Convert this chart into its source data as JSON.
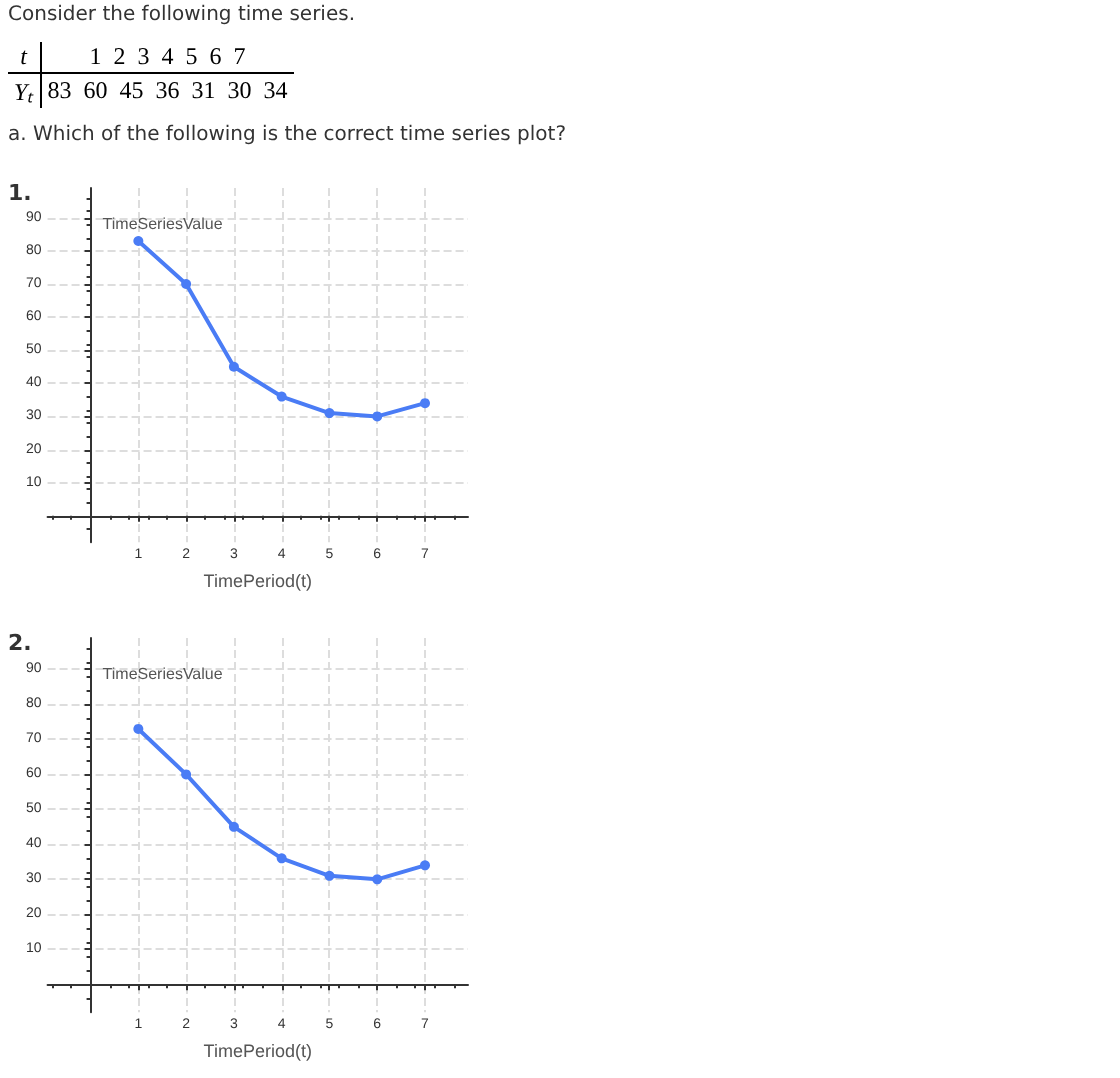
{
  "chart_data": [
    {
      "type": "other",
      "title": "Consider the following time series.",
      "annotations": [
        "t 1 2 3 4 5 6 7",
        "Yₜ 83 60 45 36 31 30 34",
        "a. Which of the following is the correct time series plot?"
      ]
    },
    {
      "type": "line",
      "title": "1.",
      "xlabel": "TimePeriod(t)",
      "ylabel": "TimeSeriesValue",
      "x": [
        1,
        2,
        3,
        4,
        5,
        6,
        7
      ],
      "series": [
        {
          "color": "#4a7cf5",
          "values": [
            83,
            70,
            45,
            36,
            31,
            30,
            34
          ]
        }
      ],
      "xlim": [
        -0.9,
        7.9
      ],
      "ylim": [
        -8,
        99
      ],
      "xticks": [
        1,
        2,
        3,
        4,
        5,
        6,
        7
      ],
      "yticks": [
        10,
        20,
        30,
        40,
        50,
        60,
        70,
        80,
        90
      ],
      "grid": true,
      "marker": "circle",
      "line_style": "solid"
    },
    {
      "type": "line",
      "title": "2.",
      "xlabel": "TimePeriod(t)",
      "ylabel": "TimeSeriesValue",
      "x": [
        1,
        2,
        3,
        4,
        5,
        6,
        7
      ],
      "series": [
        {
          "color": "#4a7cf5",
          "values": [
            73,
            60,
            45,
            36,
            31,
            30,
            34
          ]
        }
      ],
      "xlim": [
        -0.9,
        7.9
      ],
      "ylim": [
        -8,
        99
      ],
      "xticks": [
        1,
        2,
        3,
        4,
        5,
        6,
        7
      ],
      "yticks": [
        10,
        20,
        30,
        40,
        50,
        60,
        70,
        80,
        90
      ],
      "grid": true,
      "marker": "circle",
      "line_style": "solid"
    }
  ]
}
